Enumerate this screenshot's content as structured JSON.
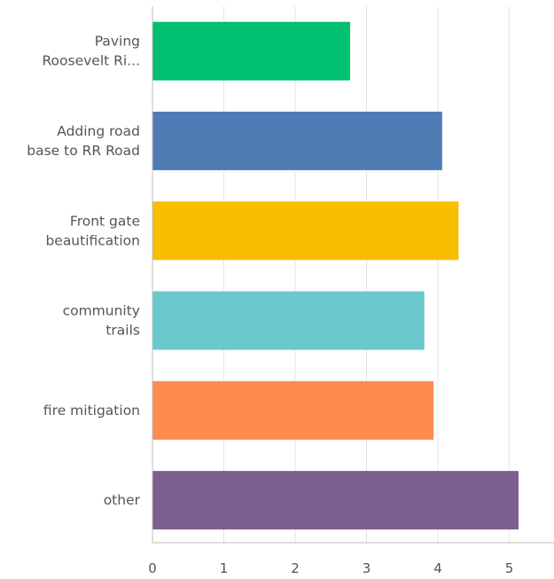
{
  "chart_data": {
    "type": "bar",
    "orientation": "horizontal",
    "categories": [
      [
        "Paving",
        "Roosevelt Ri..."
      ],
      [
        "Adding road",
        "base to RR Road"
      ],
      [
        "Front gate",
        "beautification"
      ],
      [
        "community",
        "trails"
      ],
      [
        "fire mitigation"
      ],
      [
        "other"
      ]
    ],
    "values": [
      2.77,
      4.06,
      4.29,
      3.81,
      3.94,
      5.13
    ],
    "colors": [
      "#00bf6f",
      "#507cb6",
      "#f9be00",
      "#6bc8cd",
      "#ff8b4f",
      "#7d5e90"
    ],
    "xlim": [
      0,
      5.65
    ],
    "xticks": [
      "0",
      "1",
      "2",
      "3",
      "4",
      "5"
    ],
    "grid": true,
    "title": "",
    "xlabel": "",
    "ylabel": ""
  }
}
